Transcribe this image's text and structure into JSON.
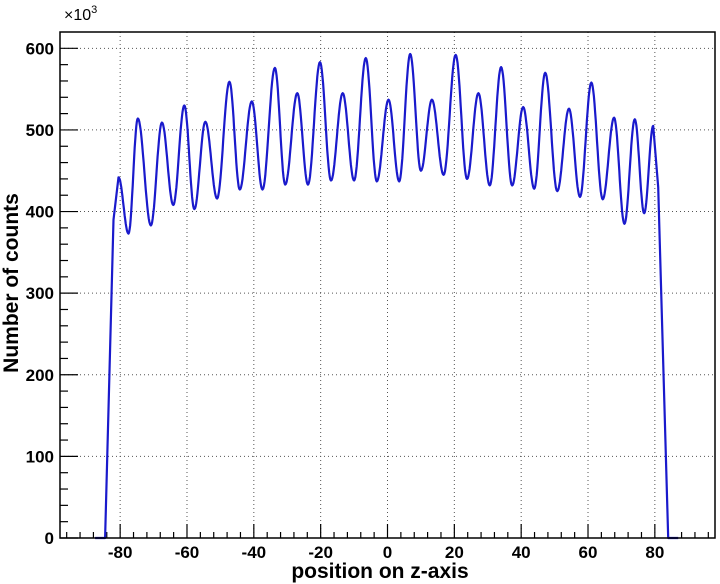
{
  "chart_data": {
    "type": "line",
    "xlabel": "position on z-axis",
    "ylabel": "Number of counts",
    "y_multiplier_base": "×10",
    "y_multiplier_exp": "3",
    "xlim": [
      -98,
      98
    ],
    "ylim": [
      0,
      620
    ],
    "grid": true,
    "x_ticks": [
      -80,
      -60,
      -40,
      -20,
      0,
      20,
      40,
      60,
      80
    ],
    "x_tick_labels": [
      "-80",
      "-60",
      "-40",
      "-20",
      "0",
      "20",
      "40",
      "60",
      "80"
    ],
    "y_ticks": [
      0,
      100,
      200,
      300,
      400,
      500,
      600
    ],
    "y_tick_labels": [
      "0",
      "100",
      "200",
      "300",
      "400",
      "500",
      "600"
    ],
    "series": [
      {
        "color": "#1a1acc",
        "peaks": [
          {
            "x": -80.5,
            "y": 442
          },
          {
            "x": -74.7,
            "y": 514
          },
          {
            "x": -67.5,
            "y": 509
          },
          {
            "x": -60.8,
            "y": 530
          },
          {
            "x": -54.5,
            "y": 510
          },
          {
            "x": -47.3,
            "y": 559
          },
          {
            "x": -40.6,
            "y": 535
          },
          {
            "x": -33.7,
            "y": 576
          },
          {
            "x": -27.0,
            "y": 545
          },
          {
            "x": -20.2,
            "y": 583
          },
          {
            "x": -13.4,
            "y": 545
          },
          {
            "x": -6.5,
            "y": 588
          },
          {
            "x": 0.3,
            "y": 537
          },
          {
            "x": 6.8,
            "y": 593
          },
          {
            "x": 13.3,
            "y": 537
          },
          {
            "x": 20.4,
            "y": 592
          },
          {
            "x": 27.2,
            "y": 545
          },
          {
            "x": 34.0,
            "y": 577
          },
          {
            "x": 40.6,
            "y": 528
          },
          {
            "x": 47.2,
            "y": 570
          },
          {
            "x": 54.3,
            "y": 526
          },
          {
            "x": 61.0,
            "y": 558
          },
          {
            "x": 67.8,
            "y": 515
          },
          {
            "x": 74.0,
            "y": 513
          },
          {
            "x": 79.5,
            "y": 505
          }
        ],
        "valleys": [
          {
            "x": -77.5,
            "y": 373
          },
          {
            "x": -70.8,
            "y": 383
          },
          {
            "x": -64.1,
            "y": 408
          },
          {
            "x": -57.8,
            "y": 403
          },
          {
            "x": -51.0,
            "y": 416
          },
          {
            "x": -44.2,
            "y": 427
          },
          {
            "x": -37.4,
            "y": 427
          },
          {
            "x": -30.6,
            "y": 433
          },
          {
            "x": -23.8,
            "y": 433
          },
          {
            "x": -16.9,
            "y": 438
          },
          {
            "x": -10.0,
            "y": 438
          },
          {
            "x": -3.2,
            "y": 437
          },
          {
            "x": 3.5,
            "y": 437
          },
          {
            "x": 10.0,
            "y": 450
          },
          {
            "x": 16.8,
            "y": 445
          },
          {
            "x": 23.8,
            "y": 440
          },
          {
            "x": 30.6,
            "y": 432
          },
          {
            "x": 37.3,
            "y": 432
          },
          {
            "x": 43.9,
            "y": 428
          },
          {
            "x": 50.8,
            "y": 425
          },
          {
            "x": 57.6,
            "y": 418
          },
          {
            "x": 64.4,
            "y": 415
          },
          {
            "x": 70.9,
            "y": 385
          },
          {
            "x": 76.8,
            "y": 398
          }
        ],
        "edges": {
          "left_start": {
            "x": -84.5,
            "y": 0
          },
          "left_top": {
            "x": -82.0,
            "y": 390
          },
          "right_top": {
            "x": 81.0,
            "y": 430
          },
          "right_end": {
            "x": 84.0,
            "y": 0
          }
        }
      }
    ]
  }
}
